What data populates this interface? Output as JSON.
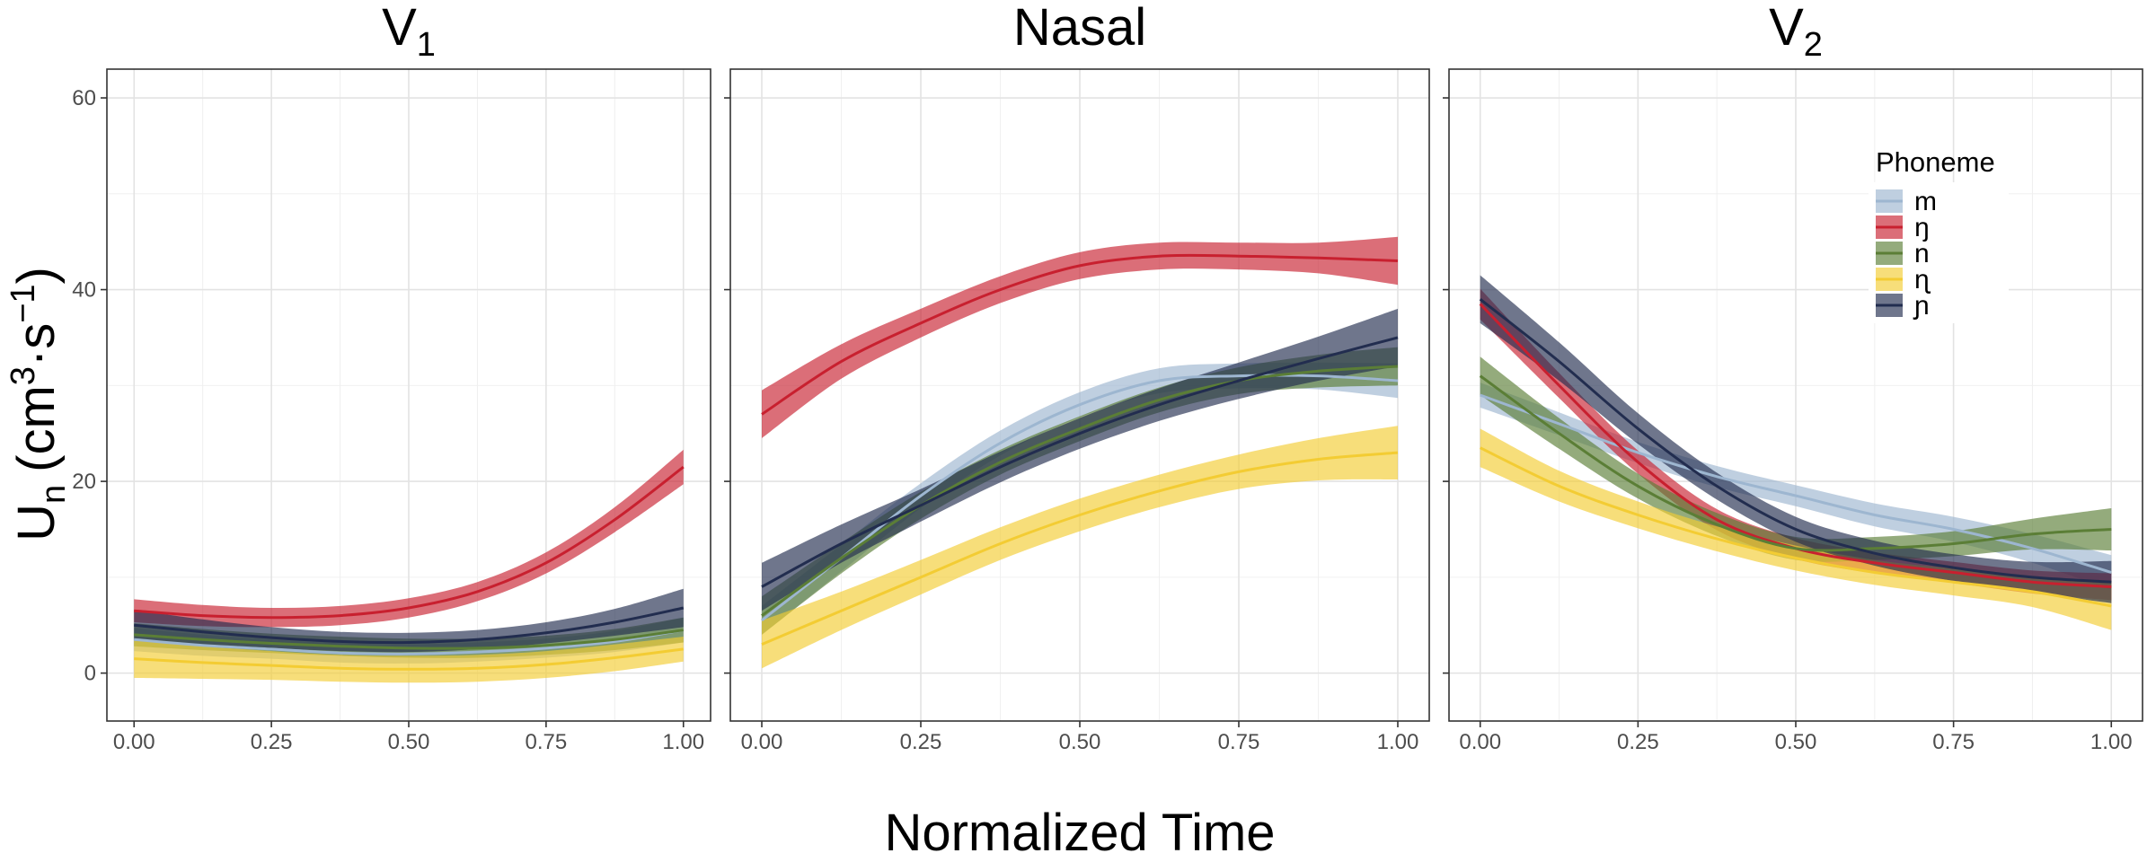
{
  "chart_data": {
    "type": "line",
    "xlabel": "Normalized Time",
    "ylabel_main": "U",
    "ylabel_sub": "n",
    "ylabel_unit_open": "(cm",
    "ylabel_unit_sup1": "3",
    "ylabel_unit_mid": "·s",
    "ylabel_unit_sup2": "−1",
    "ylabel_unit_close": ")",
    "xlim": [
      0,
      1
    ],
    "ylim": [
      -5,
      63
    ],
    "x_ticks": [
      0,
      0.25,
      0.5,
      0.75,
      1
    ],
    "x_tick_labels": [
      "0.00",
      "0.25",
      "0.50",
      "0.75",
      "1.00"
    ],
    "y_ticks": [
      0,
      20,
      40,
      60
    ],
    "y_tick_labels": [
      "0",
      "20",
      "40",
      "60"
    ],
    "grid": true,
    "legend": {
      "title": "Phoneme",
      "position": "top-right inside V2 panel",
      "entries": [
        {
          "label": "m",
          "color": "#9db6d0"
        },
        {
          "label": "ŋ",
          "color": "#c8202f"
        },
        {
          "label": "n",
          "color": "#5b7e36"
        },
        {
          "label": "ɳ",
          "color": "#f3cc33"
        },
        {
          "label": "ɲ",
          "color": "#222d4f"
        }
      ]
    },
    "x": [
      0,
      0.125,
      0.25,
      0.375,
      0.5,
      0.625,
      0.75,
      0.875,
      1
    ],
    "facets": [
      {
        "title_main": "V",
        "title_sub": "1",
        "series": [
          {
            "phoneme_index": 0,
            "y": [
              3.5,
              2.9,
              2.5,
              2.1,
              2.0,
              2.2,
              2.6,
              3.3,
              4.5
            ],
            "halfwidth": [
              1.2,
              1.1,
              1.0,
              1.0,
              1.0,
              1.0,
              1.0,
              1.1,
              1.3
            ]
          },
          {
            "phoneme_index": 1,
            "y": [
              6.5,
              6.0,
              5.8,
              6.0,
              6.8,
              8.5,
              11.5,
              16.0,
              21.5
            ],
            "halfwidth": [
              1.2,
              1.1,
              1.0,
              1.0,
              1.0,
              1.0,
              1.1,
              1.3,
              1.8
            ]
          },
          {
            "phoneme_index": 2,
            "y": [
              4.0,
              3.5,
              3.1,
              2.8,
              2.6,
              2.6,
              2.9,
              3.5,
              4.5
            ],
            "halfwidth": [
              1.2,
              1.1,
              1.0,
              1.0,
              1.0,
              1.0,
              1.0,
              1.1,
              1.3
            ]
          },
          {
            "phoneme_index": 3,
            "y": [
              1.5,
              1.1,
              0.8,
              0.5,
              0.4,
              0.5,
              0.9,
              1.6,
              2.5
            ],
            "halfwidth": [
              2.0,
              1.7,
              1.5,
              1.4,
              1.4,
              1.4,
              1.4,
              1.4,
              1.3
            ]
          },
          {
            "phoneme_index": 4,
            "y": [
              5.0,
              4.3,
              3.7,
              3.3,
              3.2,
              3.5,
              4.2,
              5.3,
              6.8
            ],
            "halfwidth": [
              1.6,
              1.3,
              1.1,
              1.0,
              1.0,
              1.0,
              1.1,
              1.4,
              2.0
            ]
          }
        ]
      },
      {
        "title_main": "Nasal",
        "title_sub": "",
        "series": [
          {
            "phoneme_index": 0,
            "y": [
              5.5,
              12.0,
              18.5,
              24.0,
              28.0,
              30.5,
              31.0,
              31.0,
              30.5
            ],
            "halfwidth": [
              1.5,
              1.4,
              1.3,
              1.3,
              1.3,
              1.3,
              1.3,
              1.4,
              1.8
            ]
          },
          {
            "phoneme_index": 1,
            "y": [
              27.0,
              32.5,
              36.5,
              40.0,
              42.5,
              43.5,
              43.5,
              43.3,
              43.0
            ],
            "halfwidth": [
              2.5,
              1.8,
              1.5,
              1.4,
              1.4,
              1.4,
              1.4,
              1.6,
              2.5
            ]
          },
          {
            "phoneme_index": 2,
            "y": [
              6.0,
              12.0,
              17.5,
              22.0,
              25.5,
              28.5,
              30.5,
              31.5,
              32.0
            ],
            "halfwidth": [
              2.0,
              1.6,
              1.4,
              1.3,
              1.3,
              1.3,
              1.4,
              1.7,
              2.0
            ]
          },
          {
            "phoneme_index": 3,
            "y": [
              3.0,
              6.5,
              10.0,
              13.5,
              16.5,
              19.0,
              21.0,
              22.3,
              23.0
            ],
            "halfwidth": [
              2.5,
              2.0,
              1.8,
              1.7,
              1.7,
              1.7,
              1.8,
              2.2,
              2.8
            ]
          },
          {
            "phoneme_index": 4,
            "y": [
              9.0,
              13.5,
              17.5,
              21.5,
              25.0,
              28.0,
              30.5,
              32.8,
              35.0
            ],
            "halfwidth": [
              2.5,
              2.0,
              1.7,
              1.6,
              1.6,
              1.7,
              1.9,
              2.3,
              3.0
            ]
          }
        ]
      },
      {
        "title_main": "V",
        "title_sub": "2",
        "series": [
          {
            "phoneme_index": 0,
            "y": [
              29.0,
              26.0,
              23.0,
              20.5,
              18.5,
              16.5,
              15.0,
              13.0,
              10.5
            ],
            "halfwidth": [
              1.3,
              1.2,
              1.1,
              1.1,
              1.1,
              1.2,
              1.3,
              1.5,
              1.8
            ]
          },
          {
            "phoneme_index": 1,
            "y": [
              38.5,
              30.0,
              22.0,
              16.0,
              13.0,
              11.5,
              10.5,
              9.5,
              9.0
            ],
            "halfwidth": [
              1.6,
              1.3,
              1.2,
              1.1,
              1.1,
              1.1,
              1.1,
              1.2,
              1.4
            ]
          },
          {
            "phoneme_index": 2,
            "y": [
              31.0,
              25.0,
              19.5,
              15.5,
              13.0,
              13.0,
              13.5,
              14.5,
              15.0
            ],
            "halfwidth": [
              2.0,
              1.6,
              1.3,
              1.2,
              1.2,
              1.2,
              1.3,
              1.6,
              2.2
            ]
          },
          {
            "phoneme_index": 3,
            "y": [
              23.5,
              19.5,
              16.5,
              14.0,
              12.0,
              10.5,
              9.5,
              8.5,
              7.0
            ],
            "halfwidth": [
              2.0,
              1.6,
              1.4,
              1.3,
              1.3,
              1.3,
              1.4,
              1.6,
              2.5
            ]
          },
          {
            "phoneme_index": 4,
            "y": [
              39.0,
              32.5,
              25.5,
              19.5,
              15.0,
              12.5,
              11.0,
              10.0,
              9.5
            ],
            "halfwidth": [
              2.5,
              2.0,
              1.6,
              1.4,
              1.3,
              1.3,
              1.4,
              1.6,
              2.2
            ]
          }
        ]
      }
    ]
  }
}
